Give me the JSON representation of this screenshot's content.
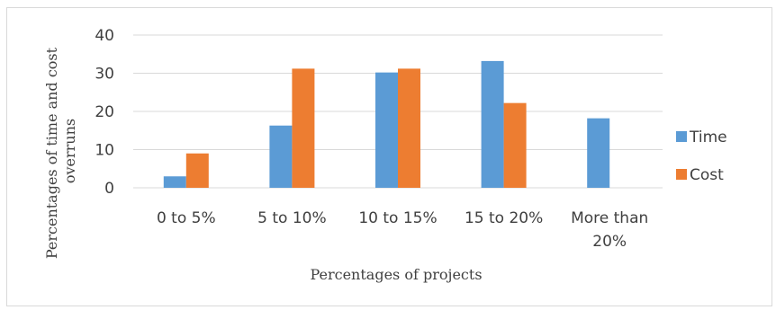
{
  "chart_data": {
    "type": "bar",
    "categories": [
      "0 to 5%",
      "5 to 10%",
      "10 to 15%",
      "15 to 20%",
      "More than 20%"
    ],
    "category_lines": [
      [
        "0 to 5%"
      ],
      [
        "5 to 10%"
      ],
      [
        "10 to 15%"
      ],
      [
        "15 to 20%"
      ],
      [
        "More than",
        "20%"
      ]
    ],
    "series": [
      {
        "name": "Time",
        "values": [
          3,
          16.3,
          30.2,
          33.2,
          18.2
        ],
        "color": "#5b9bd5"
      },
      {
        "name": "Cost",
        "values": [
          9,
          31.2,
          31.2,
          22.2,
          0
        ],
        "color": "#ed7d31"
      }
    ],
    "xlabel": "Percentages of projects",
    "ylabel_lines": [
      "Percentages of time and cost",
      "overruns"
    ],
    "ylim": [
      0,
      40
    ],
    "yticks": [
      0,
      10,
      20,
      30,
      40
    ],
    "grid": true,
    "legend_position": "right",
    "colors": {
      "grid": "#d9d9d9",
      "text": "#404040"
    }
  }
}
